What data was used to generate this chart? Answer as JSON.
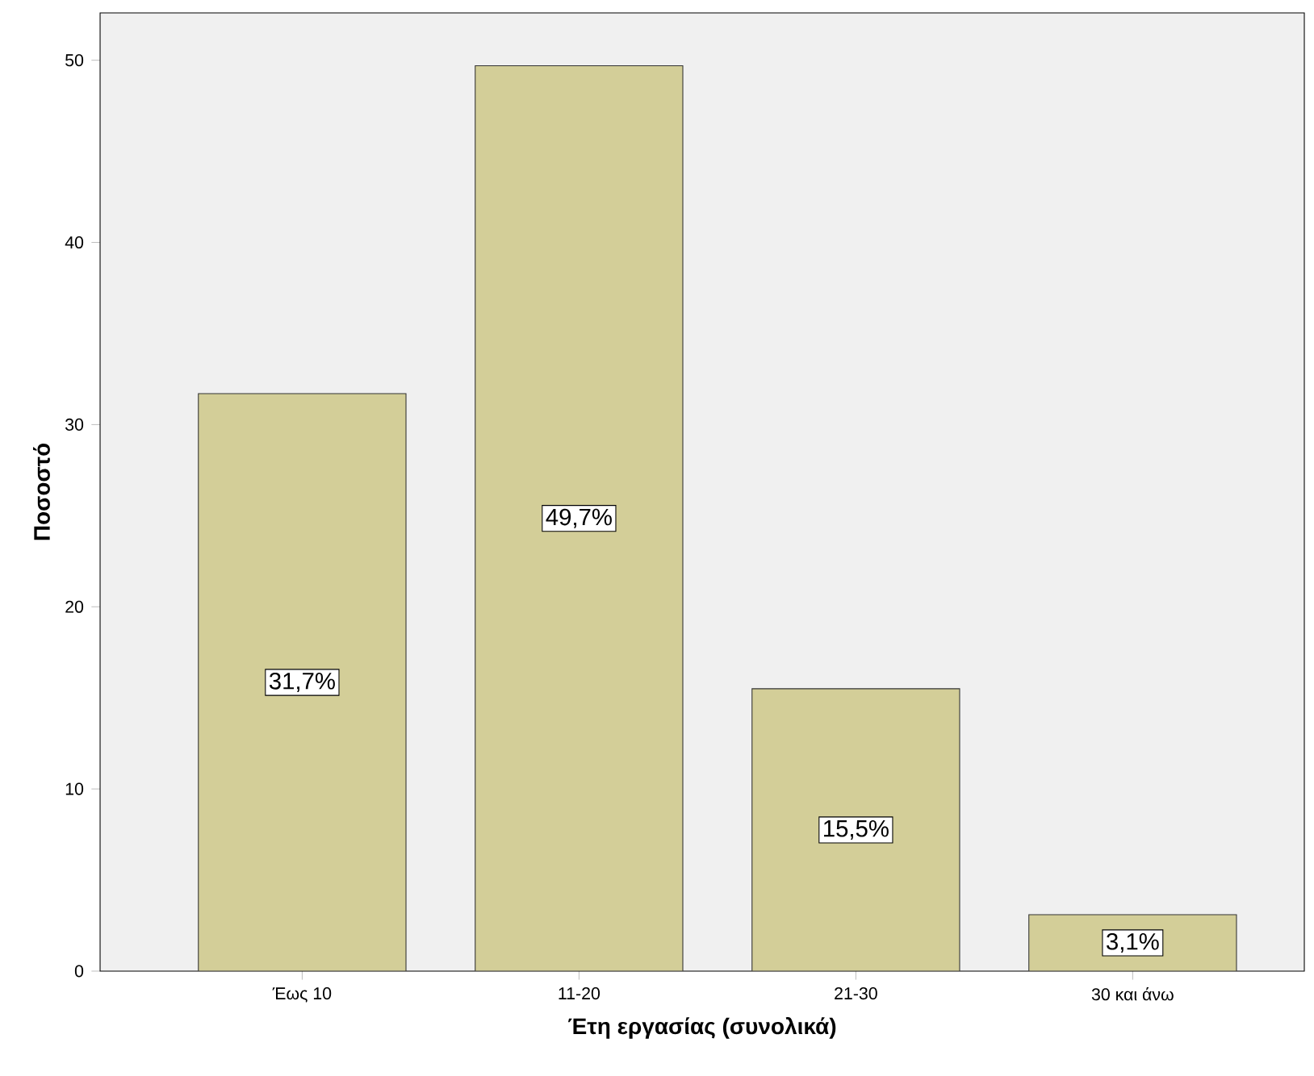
{
  "chart_data": {
    "type": "bar",
    "xlabel": "Έτη εργασίας (συνολικά)",
    "ylabel": "Ποσοστό",
    "categories": [
      "Έως 10",
      "11-20",
      "21-30",
      "30 και άνω"
    ],
    "values": [
      31.7,
      49.7,
      15.5,
      3.1
    ],
    "value_labels": [
      "31,7%",
      "49,7%",
      "15,5%",
      "3,1%"
    ],
    "color": "#d3ce98",
    "ylim": [
      0,
      52.6
    ],
    "yticks": [
      0,
      10,
      20,
      30,
      40,
      50
    ],
    "grid": false
  }
}
